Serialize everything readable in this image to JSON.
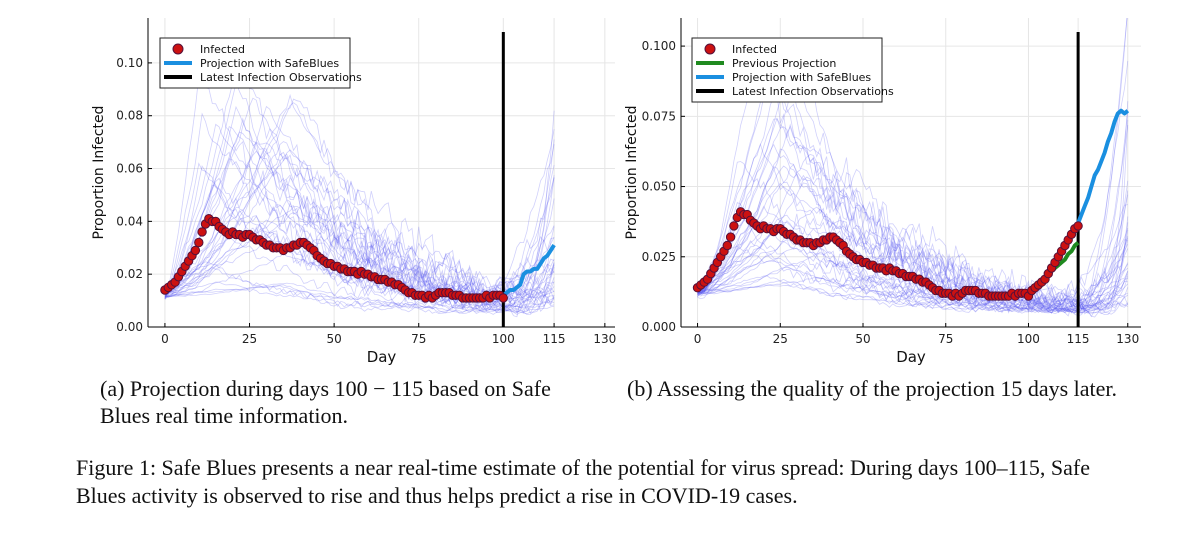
{
  "captions": {
    "a": "(a) Projection during days 100 − 115 based on Safe Blues real time information.",
    "b": "(b) Assessing the quality of the projection 15 days later.",
    "figure": "Figure 1: Safe Blues presents a near real-time estimate of the potential for virus spread: During days 100–115, Safe Blues activity is observed to rise and thus helps predict a rise in COVID-19 cases."
  },
  "colors": {
    "infected_fill": "#cc1111",
    "infected_stroke": "#55113a",
    "projection": "#1a8fe0",
    "previous_projection": "#1f8a1f",
    "observation_line": "#000000",
    "ensemble": "#5a5af0"
  },
  "chart_data": [
    {
      "type": "line",
      "panel": "a",
      "xlabel": "Day",
      "ylabel": "Proportion Infected",
      "xlim": [
        -5,
        133
      ],
      "ylim": [
        0,
        0.117
      ],
      "xticks": [
        0,
        25,
        50,
        75,
        100,
        115,
        130
      ],
      "yticks": [
        0.0,
        0.02,
        0.04,
        0.06,
        0.08,
        0.1
      ],
      "ytick_labels": [
        "0.00",
        "0.02",
        "0.04",
        "0.06",
        "0.08",
        "0.10"
      ],
      "grid": true,
      "legend_position": "top-left",
      "legend": [
        "Infected",
        "Projection with SafeBlues",
        "Latest Infection Observations"
      ],
      "series": [
        {
          "name": "Infected",
          "kind": "scatter",
          "x": [
            0,
            1,
            2,
            3,
            4,
            5,
            6,
            7,
            8,
            9,
            10,
            11,
            12,
            13,
            14,
            15,
            16,
            17,
            18,
            19,
            20,
            21,
            22,
            23,
            24,
            25,
            26,
            27,
            28,
            29,
            30,
            31,
            32,
            33,
            34,
            35,
            36,
            37,
            38,
            39,
            40,
            41,
            42,
            43,
            44,
            45,
            46,
            47,
            48,
            49,
            50,
            51,
            52,
            53,
            54,
            55,
            56,
            57,
            58,
            59,
            60,
            61,
            62,
            63,
            64,
            65,
            66,
            67,
            68,
            69,
            70,
            71,
            72,
            73,
            74,
            75,
            76,
            77,
            78,
            79,
            80,
            81,
            82,
            83,
            84,
            85,
            86,
            87,
            88,
            89,
            90,
            91,
            92,
            93,
            94,
            95,
            96,
            97,
            98,
            99,
            100
          ],
          "y": [
            0.014,
            0.015,
            0.016,
            0.017,
            0.019,
            0.021,
            0.023,
            0.025,
            0.027,
            0.029,
            0.032,
            0.036,
            0.039,
            0.041,
            0.04,
            0.04,
            0.038,
            0.037,
            0.036,
            0.035,
            0.036,
            0.035,
            0.035,
            0.034,
            0.035,
            0.035,
            0.034,
            0.033,
            0.033,
            0.032,
            0.031,
            0.031,
            0.03,
            0.03,
            0.03,
            0.029,
            0.03,
            0.03,
            0.031,
            0.031,
            0.032,
            0.032,
            0.031,
            0.03,
            0.029,
            0.027,
            0.026,
            0.025,
            0.024,
            0.024,
            0.023,
            0.023,
            0.022,
            0.022,
            0.021,
            0.021,
            0.021,
            0.02,
            0.021,
            0.02,
            0.02,
            0.019,
            0.019,
            0.018,
            0.018,
            0.018,
            0.017,
            0.017,
            0.016,
            0.016,
            0.015,
            0.014,
            0.013,
            0.013,
            0.012,
            0.012,
            0.012,
            0.011,
            0.012,
            0.011,
            0.012,
            0.013,
            0.013,
            0.013,
            0.013,
            0.012,
            0.012,
            0.012,
            0.011,
            0.011,
            0.011,
            0.011,
            0.011,
            0.011,
            0.011,
            0.012,
            0.011,
            0.012,
            0.012,
            0.012,
            0.011
          ]
        },
        {
          "name": "Projection with SafeBlues",
          "kind": "line",
          "x": [
            100,
            101,
            102,
            103,
            104,
            105,
            106,
            107,
            108,
            109,
            110,
            111,
            112,
            113,
            114,
            115
          ],
          "y": [
            0.012,
            0.013,
            0.014,
            0.014,
            0.015,
            0.016,
            0.02,
            0.021,
            0.021,
            0.022,
            0.022,
            0.024,
            0.026,
            0.027,
            0.029,
            0.031
          ]
        }
      ],
      "vline": {
        "name": "Latest Infection Observations",
        "x": 100
      }
    },
    {
      "type": "line",
      "panel": "b",
      "xlabel": "Day",
      "ylabel": "Proportion Infected",
      "xlim": [
        -5,
        134
      ],
      "ylim": [
        0,
        0.11
      ],
      "xticks": [
        0,
        25,
        50,
        75,
        100,
        115,
        130
      ],
      "yticks": [
        0.0,
        0.025,
        0.05,
        0.075,
        0.1
      ],
      "ytick_labels": [
        "0.000",
        "0.025",
        "0.050",
        "0.075",
        "0.100"
      ],
      "grid": true,
      "legend_position": "top-left",
      "legend": [
        "Infected",
        "Previous Projection",
        "Projection with SafeBlues",
        "Latest Infection Observations"
      ],
      "series": [
        {
          "name": "Infected",
          "kind": "scatter",
          "x": [
            0,
            1,
            2,
            3,
            4,
            5,
            6,
            7,
            8,
            9,
            10,
            11,
            12,
            13,
            14,
            15,
            16,
            17,
            18,
            19,
            20,
            21,
            22,
            23,
            24,
            25,
            26,
            27,
            28,
            29,
            30,
            31,
            32,
            33,
            34,
            35,
            36,
            37,
            38,
            39,
            40,
            41,
            42,
            43,
            44,
            45,
            46,
            47,
            48,
            49,
            50,
            51,
            52,
            53,
            54,
            55,
            56,
            57,
            58,
            59,
            60,
            61,
            62,
            63,
            64,
            65,
            66,
            67,
            68,
            69,
            70,
            71,
            72,
            73,
            74,
            75,
            76,
            77,
            78,
            79,
            80,
            81,
            82,
            83,
            84,
            85,
            86,
            87,
            88,
            89,
            90,
            91,
            92,
            93,
            94,
            95,
            96,
            97,
            98,
            99,
            100,
            101,
            102,
            103,
            104,
            105,
            106,
            107,
            108,
            109,
            110,
            111,
            112,
            113,
            114,
            115
          ],
          "y": [
            0.014,
            0.015,
            0.016,
            0.017,
            0.019,
            0.021,
            0.023,
            0.025,
            0.027,
            0.029,
            0.032,
            0.036,
            0.039,
            0.041,
            0.04,
            0.04,
            0.038,
            0.037,
            0.036,
            0.035,
            0.036,
            0.035,
            0.035,
            0.034,
            0.035,
            0.035,
            0.034,
            0.033,
            0.033,
            0.032,
            0.031,
            0.031,
            0.03,
            0.03,
            0.03,
            0.029,
            0.03,
            0.03,
            0.031,
            0.031,
            0.032,
            0.032,
            0.031,
            0.03,
            0.029,
            0.027,
            0.026,
            0.025,
            0.024,
            0.024,
            0.023,
            0.023,
            0.022,
            0.022,
            0.021,
            0.021,
            0.021,
            0.02,
            0.021,
            0.02,
            0.02,
            0.019,
            0.019,
            0.018,
            0.018,
            0.018,
            0.017,
            0.017,
            0.016,
            0.016,
            0.015,
            0.014,
            0.013,
            0.013,
            0.012,
            0.012,
            0.012,
            0.011,
            0.012,
            0.011,
            0.012,
            0.013,
            0.013,
            0.013,
            0.013,
            0.012,
            0.012,
            0.012,
            0.011,
            0.011,
            0.011,
            0.011,
            0.011,
            0.011,
            0.011,
            0.012,
            0.011,
            0.012,
            0.012,
            0.012,
            0.011,
            0.013,
            0.014,
            0.015,
            0.016,
            0.017,
            0.019,
            0.021,
            0.023,
            0.025,
            0.027,
            0.029,
            0.031,
            0.033,
            0.035,
            0.036
          ]
        },
        {
          "name": "Previous Projection",
          "kind": "line",
          "x": [
            100,
            101,
            102,
            103,
            104,
            105,
            106,
            107,
            108,
            109,
            110,
            111,
            112,
            113,
            114,
            115
          ],
          "y": [
            0.011,
            0.012,
            0.013,
            0.014,
            0.015,
            0.016,
            0.02,
            0.021,
            0.021,
            0.022,
            0.023,
            0.024,
            0.026,
            0.027,
            0.029,
            0.03
          ]
        },
        {
          "name": "Projection with SafeBlues",
          "kind": "line",
          "x": [
            115,
            116,
            117,
            118,
            119,
            120,
            121,
            122,
            123,
            124,
            125,
            126,
            127,
            128,
            129,
            130
          ],
          "y": [
            0.037,
            0.04,
            0.043,
            0.046,
            0.05,
            0.054,
            0.056,
            0.059,
            0.062,
            0.066,
            0.069,
            0.073,
            0.076,
            0.077,
            0.076,
            0.077
          ]
        }
      ],
      "vline": {
        "name": "Latest Infection Observations",
        "x": 115
      }
    }
  ]
}
